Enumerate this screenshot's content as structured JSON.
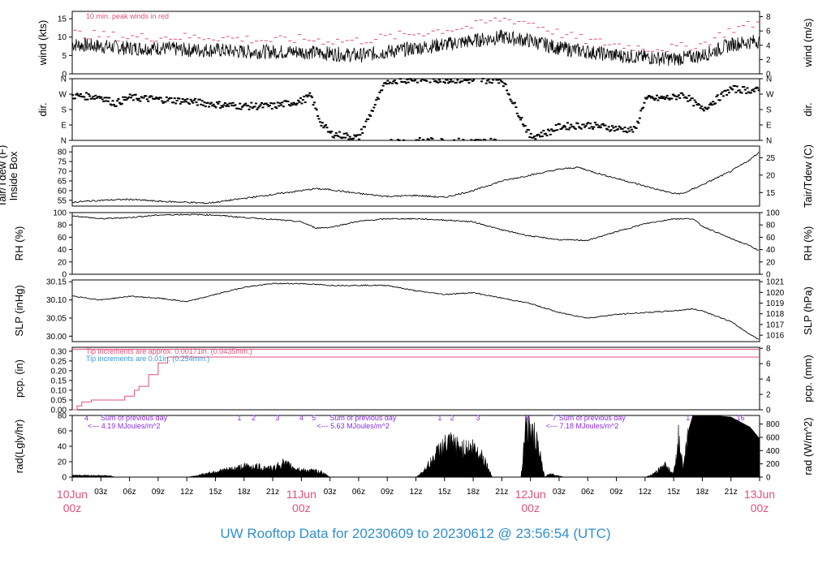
{
  "chart_data": {
    "type": "line",
    "title": "UW Rooftop Data for 20230609  to  20230612 @ 23:56:54  (UTC)",
    "x_axis": {
      "day_labels": [
        {
          "hour": 0,
          "date": "10Jun",
          "time": "00z"
        },
        {
          "hour": 24,
          "date": "11Jun",
          "time": "00z"
        },
        {
          "hour": 48,
          "date": "12Jun",
          "time": "00z"
        },
        {
          "hour": 72,
          "date": "13Jun",
          "time": "00z"
        }
      ],
      "hour_ticks": [
        "03z",
        "06z",
        "09z",
        "12z",
        "15z",
        "18z",
        "21z"
      ],
      "range_hours": [
        0,
        72
      ]
    },
    "panels": [
      {
        "id": "wind",
        "ylabel_left": "wind (kts)",
        "ylabel_right": "wind (m/s)",
        "yticks_left": [
          "0",
          "5",
          "10",
          "15"
        ],
        "yticks_right": [
          "0",
          "2",
          "4",
          "6",
          "8"
        ],
        "ylim": [
          0,
          17
        ],
        "annotation": "10 min. peak winds in red",
        "annotation_color": "#e0507a",
        "mean_wind_kts": [
          [
            0,
            8
          ],
          [
            3,
            7.5
          ],
          [
            6,
            7
          ],
          [
            9,
            7
          ],
          [
            12,
            6.5
          ],
          [
            15,
            6.5
          ],
          [
            18,
            6
          ],
          [
            21,
            6
          ],
          [
            24,
            6
          ],
          [
            27,
            5.5
          ],
          [
            30,
            5
          ],
          [
            33,
            6
          ],
          [
            36,
            7
          ],
          [
            39,
            8
          ],
          [
            42,
            9
          ],
          [
            45,
            10
          ],
          [
            48,
            9
          ],
          [
            51,
            7
          ],
          [
            54,
            6
          ],
          [
            57,
            5
          ],
          [
            60,
            4.5
          ],
          [
            63,
            4
          ],
          [
            66,
            5
          ],
          [
            69,
            8
          ],
          [
            72,
            9
          ]
        ],
        "peak_wind_kts": [
          [
            0,
            11
          ],
          [
            3,
            10.5
          ],
          [
            6,
            10
          ],
          [
            9,
            10
          ],
          [
            12,
            10
          ],
          [
            15,
            10
          ],
          [
            18,
            9.5
          ],
          [
            21,
            9
          ],
          [
            24,
            9.5
          ],
          [
            27,
            9
          ],
          [
            30,
            9
          ],
          [
            33,
            10
          ],
          [
            36,
            11
          ],
          [
            39,
            12
          ],
          [
            42,
            13
          ],
          [
            45,
            15
          ],
          [
            48,
            14
          ],
          [
            51,
            11
          ],
          [
            54,
            9
          ],
          [
            57,
            8
          ],
          [
            60,
            7
          ],
          [
            63,
            7
          ],
          [
            66,
            8
          ],
          [
            69,
            12
          ],
          [
            72,
            14
          ]
        ]
      },
      {
        "id": "direction",
        "ylabel_left": "dir.",
        "ylabel_right": "dir.",
        "yticks": [
          "N",
          "E",
          "S",
          "W",
          "N"
        ],
        "ylim": [
          0,
          360
        ],
        "direction_deg": [
          [
            0,
            260
          ],
          [
            3,
            255
          ],
          [
            4.5,
            215
          ],
          [
            6,
            250
          ],
          [
            9,
            240
          ],
          [
            12,
            230
          ],
          [
            15,
            210
          ],
          [
            18,
            200
          ],
          [
            21,
            200
          ],
          [
            24,
            230
          ],
          [
            25,
            260
          ],
          [
            26,
            110
          ],
          [
            27,
            40
          ],
          [
            30,
            15
          ],
          [
            33,
            350
          ],
          [
            36,
            355
          ],
          [
            39,
            355
          ],
          [
            42,
            350
          ],
          [
            45,
            355
          ],
          [
            48,
            20
          ],
          [
            50,
            50
          ],
          [
            51,
            80
          ],
          [
            54,
            90
          ],
          [
            57,
            70
          ],
          [
            59,
            60
          ],
          [
            60,
            240
          ],
          [
            63,
            250
          ],
          [
            64,
            270
          ],
          [
            66,
            180
          ],
          [
            69,
            300
          ],
          [
            72,
            290
          ]
        ]
      },
      {
        "id": "temperature",
        "ylabel_left": "Tair/Tdew (F)\nInside Box",
        "ylabel_right": "Tair/Tdew (C)",
        "yticks_left": [
          "55",
          "60",
          "65",
          "70",
          "75",
          "80"
        ],
        "yticks_right": [
          "15",
          "20",
          "25"
        ],
        "ylim": [
          52,
          83
        ],
        "temp_f": [
          [
            0,
            54
          ],
          [
            3,
            55
          ],
          [
            6,
            55.5
          ],
          [
            9,
            54.5
          ],
          [
            12,
            54
          ],
          [
            14,
            53.5
          ],
          [
            15,
            54
          ],
          [
            18,
            56
          ],
          [
            21,
            58
          ],
          [
            24,
            60
          ],
          [
            25.5,
            61
          ],
          [
            27,
            60.5
          ],
          [
            30,
            58.5
          ],
          [
            33,
            57
          ],
          [
            36,
            57.5
          ],
          [
            39,
            56.5
          ],
          [
            42,
            60
          ],
          [
            45,
            65
          ],
          [
            48,
            68
          ],
          [
            51,
            71
          ],
          [
            53,
            72
          ],
          [
            55,
            69
          ],
          [
            58,
            65
          ],
          [
            61,
            61
          ],
          [
            63,
            58.5
          ],
          [
            64,
            58.5
          ],
          [
            66,
            63
          ],
          [
            69,
            70
          ],
          [
            71,
            76
          ],
          [
            72,
            80
          ]
        ]
      },
      {
        "id": "humidity",
        "ylabel_left": "RH (%)",
        "ylabel_right": "RH (%)",
        "yticks": [
          "0",
          "20",
          "40",
          "60",
          "80",
          "100"
        ],
        "ylim": [
          0,
          100
        ],
        "rh_pct": [
          [
            0,
            95
          ],
          [
            3,
            90
          ],
          [
            6,
            92
          ],
          [
            9,
            96
          ],
          [
            12,
            97
          ],
          [
            15,
            96
          ],
          [
            18,
            92
          ],
          [
            21,
            89
          ],
          [
            24,
            85
          ],
          [
            25.5,
            75
          ],
          [
            27,
            76
          ],
          [
            30,
            86
          ],
          [
            33,
            90
          ],
          [
            36,
            90
          ],
          [
            39,
            88
          ],
          [
            42,
            85
          ],
          [
            45,
            72
          ],
          [
            48,
            62
          ],
          [
            51,
            56
          ],
          [
            54,
            55
          ],
          [
            57,
            69
          ],
          [
            60,
            82
          ],
          [
            63,
            90
          ],
          [
            65,
            90
          ],
          [
            66,
            78
          ],
          [
            69,
            58
          ],
          [
            71,
            46
          ],
          [
            72,
            38
          ]
        ]
      },
      {
        "id": "pressure",
        "ylabel_left": "SLP (inHg)",
        "ylabel_right": "SLP (hPa)",
        "yticks_left": [
          "30.00",
          "30.05",
          "30.10",
          "30.15"
        ],
        "yticks_right": [
          "1016",
          "1017",
          "1018",
          "1019",
          "1020",
          "1021"
        ],
        "ylim": [
          29.985,
          30.155
        ],
        "slp_inhg": [
          [
            0,
            30.11
          ],
          [
            3,
            30.1
          ],
          [
            6,
            30.11
          ],
          [
            9,
            30.105
          ],
          [
            12,
            30.095
          ],
          [
            15,
            30.115
          ],
          [
            18,
            30.135
          ],
          [
            21,
            30.145
          ],
          [
            24,
            30.145
          ],
          [
            27,
            30.14
          ],
          [
            30,
            30.14
          ],
          [
            33,
            30.14
          ],
          [
            36,
            30.125
          ],
          [
            39,
            30.115
          ],
          [
            42,
            30.12
          ],
          [
            45,
            30.105
          ],
          [
            48,
            30.09
          ],
          [
            51,
            30.065
          ],
          [
            54,
            30.05
          ],
          [
            57,
            30.06
          ],
          [
            60,
            30.065
          ],
          [
            63,
            30.07
          ],
          [
            65,
            30.075
          ],
          [
            66,
            30.07
          ],
          [
            69,
            30.04
          ],
          [
            71,
            30.005
          ],
          [
            72,
            29.99
          ]
        ]
      },
      {
        "id": "precipitation",
        "ylabel_left": "pcp. (in)",
        "ylabel_right": "pcp. (mm)",
        "yticks_left": [
          "0.00",
          "0.05",
          "0.10",
          "0.15",
          "0.20",
          "0.25",
          "0.30"
        ],
        "yticks_right": [
          "0",
          "2",
          "4",
          "6",
          "8"
        ],
        "ylim": [
          0,
          0.32
        ],
        "notes": [
          {
            "text": "Tip increments are approx. 0.00171in. (0.0435mm.)",
            "color": "#e0507a"
          },
          {
            "text": "Tip increments are 0.01in. (0.254mm.)",
            "color": "#3a96d8"
          }
        ],
        "cumulative_in": [
          [
            0,
            0
          ],
          [
            0.5,
            0.02
          ],
          [
            1,
            0.04
          ],
          [
            2,
            0.05
          ],
          [
            5,
            0.05
          ],
          [
            5.5,
            0.07
          ],
          [
            6.5,
            0.1
          ],
          [
            7,
            0.12
          ],
          [
            8,
            0.18
          ],
          [
            9,
            0.24
          ],
          [
            10,
            0.27
          ],
          [
            72,
            0.27
          ]
        ]
      },
      {
        "id": "radiation",
        "ylabel_left": "rad(Lgly/hr)",
        "ylabel_right": "rad (W/m^2)",
        "yticks_left": [
          "0",
          "20",
          "40",
          "60",
          "80"
        ],
        "yticks_right": [
          "0",
          "200",
          "400",
          "600",
          "800"
        ],
        "ylim": [
          0,
          80
        ],
        "daily_totals": [
          {
            "label": "Sum of previous day",
            "value": "<--- 4.19 MJoules/m^2",
            "x_hour": 4
          },
          {
            "label": "Sum of previous day",
            "value": "<--- 5.63 MJoules/m^2",
            "x_hour": 28
          },
          {
            "label": "Sum of previous day",
            "value": "<--- 7.18 MJoules/m^2",
            "x_hour": 52
          }
        ],
        "markers": [
          {
            "label": "4",
            "x_hour": 1.5
          },
          {
            "label": "1",
            "x_hour": 17.5
          },
          {
            "label": "2",
            "x_hour": 19
          },
          {
            "label": "3",
            "x_hour": 21.5
          },
          {
            "label": "4",
            "x_hour": 24
          },
          {
            "label": "5",
            "x_hour": 25.3
          },
          {
            "label": "1",
            "x_hour": 38.5
          },
          {
            "label": "2",
            "x_hour": 39.8
          },
          {
            "label": "3",
            "x_hour": 42.5
          },
          {
            "label": "4",
            "x_hour": 47.7
          },
          {
            "label": "7",
            "x_hour": 50.5
          },
          {
            "label": "1",
            "x_hour": 64.5
          },
          {
            "label": "16",
            "x_hour": 70
          }
        ],
        "radiation_lgly": [
          [
            0,
            3
          ],
          [
            4,
            2
          ],
          [
            4.5,
            0
          ],
          [
            12,
            0
          ],
          [
            13,
            2
          ],
          [
            15,
            8
          ],
          [
            17,
            12
          ],
          [
            18,
            15
          ],
          [
            19,
            15
          ],
          [
            20,
            14
          ],
          [
            21,
            12
          ],
          [
            22,
            20
          ],
          [
            24,
            10
          ],
          [
            26,
            8
          ],
          [
            27,
            0
          ],
          [
            36,
            0
          ],
          [
            36.5,
            5
          ],
          [
            37.5,
            20
          ],
          [
            38.5,
            40
          ],
          [
            39.5,
            48
          ],
          [
            40,
            45
          ],
          [
            41,
            40
          ],
          [
            42,
            42
          ],
          [
            43,
            30
          ],
          [
            44,
            0
          ],
          [
            47,
            0
          ],
          [
            47.5,
            75
          ],
          [
            48,
            65
          ],
          [
            48.5,
            55
          ],
          [
            49,
            30
          ],
          [
            49.5,
            0
          ],
          [
            50,
            5
          ],
          [
            51,
            2
          ],
          [
            51.5,
            0
          ],
          [
            60,
            0
          ],
          [
            61,
            5
          ],
          [
            62,
            18
          ],
          [
            63,
            5
          ],
          [
            63.5,
            55
          ],
          [
            64,
            10
          ],
          [
            64.5,
            58
          ],
          [
            65,
            80
          ],
          [
            67,
            80
          ],
          [
            69,
            78
          ],
          [
            71,
            65
          ],
          [
            72,
            50
          ]
        ]
      }
    ]
  }
}
